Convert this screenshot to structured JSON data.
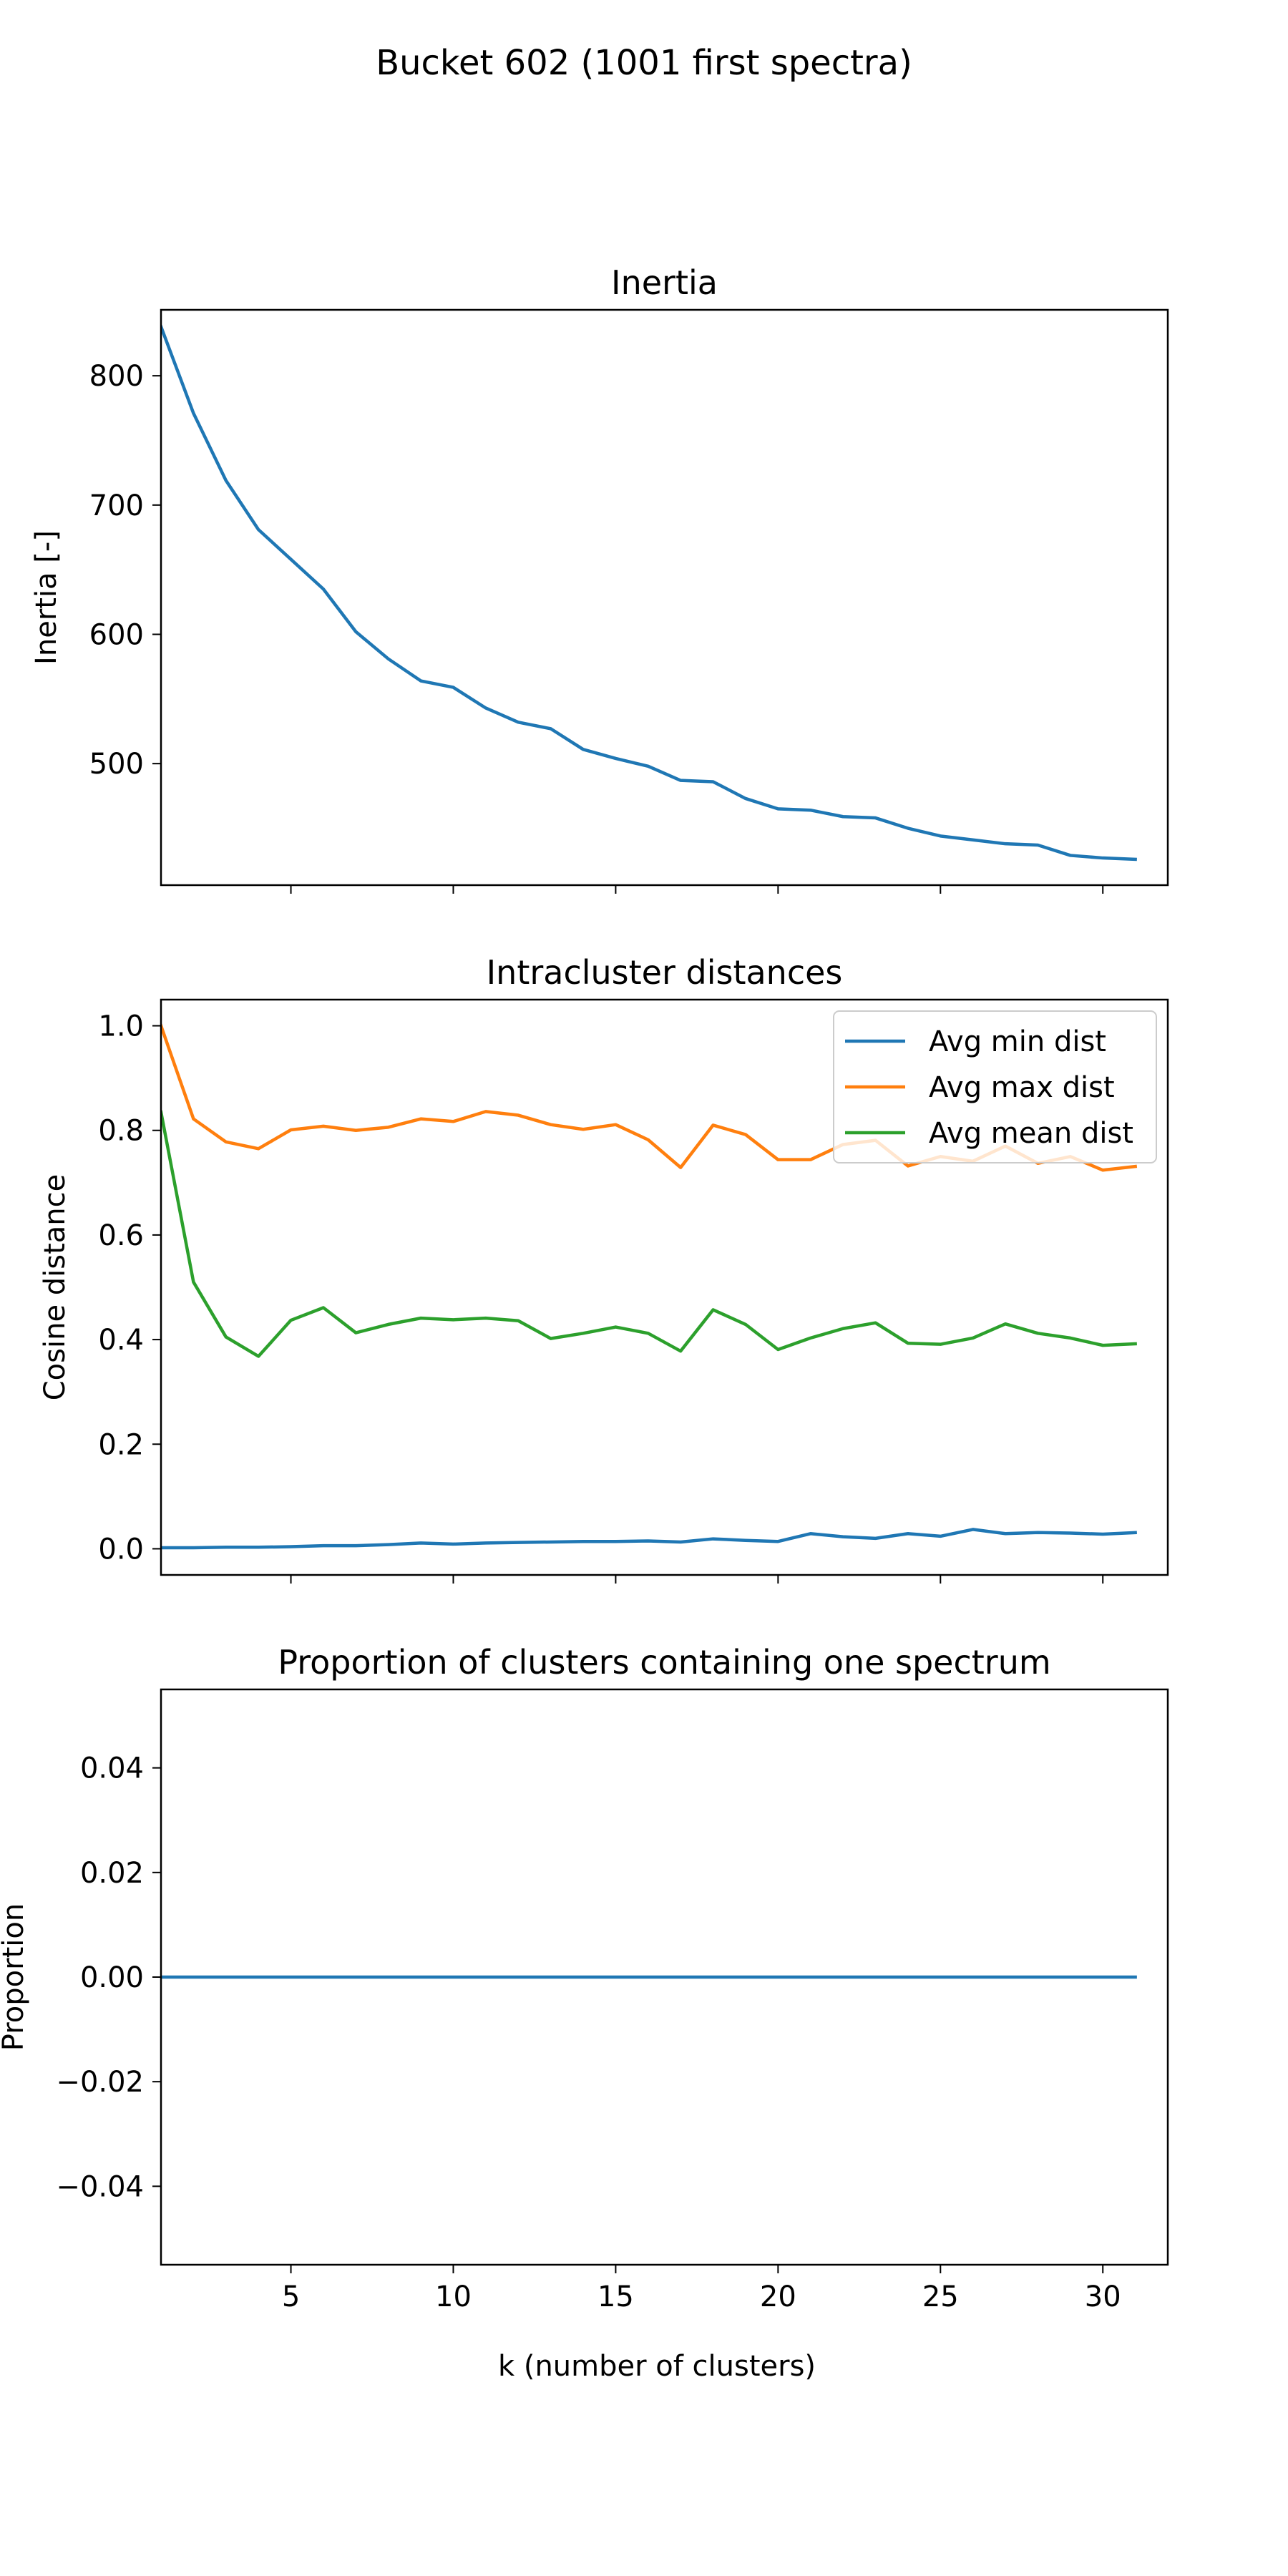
{
  "figure": {
    "title": "Bucket 602 (1001 first spectra)",
    "xlabel": "k (number of clusters)"
  },
  "chart_data": [
    {
      "type": "line",
      "title": "Inertia",
      "ylabel": "Inertia [-]",
      "xlim": [
        1,
        32
      ],
      "ylim": [
        406,
        851
      ],
      "xticks": [
        5,
        10,
        15,
        20,
        25,
        30
      ],
      "yticks": [
        500,
        600,
        700,
        800
      ],
      "show_xtick_labels": false,
      "legend": null,
      "grid": false,
      "series": [
        {
          "color": "#1f77b4",
          "x": [
            1,
            2,
            3,
            4,
            5,
            6,
            7,
            8,
            9,
            10,
            11,
            12,
            13,
            14,
            15,
            16,
            17,
            18,
            19,
            20,
            21,
            22,
            23,
            24,
            25,
            26,
            27,
            28,
            29,
            30,
            31
          ],
          "y": [
            838,
            771,
            719,
            681,
            658,
            635,
            602,
            581,
            564,
            559,
            543,
            532,
            527,
            511,
            504,
            498,
            487,
            486,
            473,
            465,
            464,
            459,
            458,
            450,
            444,
            441,
            438,
            437,
            429,
            427,
            426
          ]
        }
      ]
    },
    {
      "type": "line",
      "title": "Intracluster distances",
      "ylabel": "Cosine distance",
      "xlim": [
        1,
        32
      ],
      "ylim": [
        -0.05,
        1.05
      ],
      "xticks": [
        5,
        10,
        15,
        20,
        25,
        30
      ],
      "yticks": [
        0.0,
        0.2,
        0.4,
        0.6,
        0.8,
        1.0
      ],
      "ytick_labels": [
        "0.0",
        "0.2",
        "0.4",
        "0.6",
        "0.8",
        "1.0"
      ],
      "show_xtick_labels": false,
      "legend": "upper right",
      "grid": false,
      "series": [
        {
          "name": "Avg min dist",
          "color": "#1f77b4",
          "x": [
            1,
            2,
            3,
            4,
            5,
            6,
            7,
            8,
            9,
            10,
            11,
            12,
            13,
            14,
            15,
            16,
            17,
            18,
            19,
            20,
            21,
            22,
            23,
            24,
            25,
            26,
            27,
            28,
            29,
            30,
            31
          ],
          "y": [
            0.002,
            0.002,
            0.003,
            0.003,
            0.004,
            0.006,
            0.006,
            0.008,
            0.011,
            0.009,
            0.011,
            0.012,
            0.013,
            0.014,
            0.014,
            0.015,
            0.013,
            0.019,
            0.016,
            0.014,
            0.029,
            0.023,
            0.02,
            0.029,
            0.024,
            0.037,
            0.029,
            0.031,
            0.03,
            0.028,
            0.031
          ]
        },
        {
          "name": "Avg max dist",
          "color": "#ff7f0e",
          "x": [
            1,
            2,
            3,
            4,
            5,
            6,
            7,
            8,
            9,
            10,
            11,
            12,
            13,
            14,
            15,
            16,
            17,
            18,
            19,
            20,
            21,
            22,
            23,
            24,
            25,
            26,
            27,
            28,
            29,
            30,
            31
          ],
          "y": [
            1.0,
            0.822,
            0.778,
            0.765,
            0.801,
            0.808,
            0.8,
            0.806,
            0.822,
            0.817,
            0.836,
            0.829,
            0.811,
            0.802,
            0.811,
            0.782,
            0.729,
            0.81,
            0.792,
            0.744,
            0.744,
            0.773,
            0.781,
            0.732,
            0.75,
            0.741,
            0.77,
            0.737,
            0.75,
            0.724,
            0.731
          ]
        },
        {
          "name": "Avg mean dist",
          "color": "#2ca02c",
          "x": [
            1,
            2,
            3,
            4,
            5,
            6,
            7,
            8,
            9,
            10,
            11,
            12,
            13,
            14,
            15,
            16,
            17,
            18,
            19,
            20,
            21,
            22,
            23,
            24,
            25,
            26,
            27,
            28,
            29,
            30,
            31
          ],
          "y": [
            0.835,
            0.51,
            0.405,
            0.368,
            0.437,
            0.461,
            0.413,
            0.429,
            0.441,
            0.438,
            0.441,
            0.436,
            0.402,
            0.412,
            0.424,
            0.412,
            0.378,
            0.457,
            0.429,
            0.381,
            0.403,
            0.421,
            0.432,
            0.393,
            0.391,
            0.403,
            0.43,
            0.412,
            0.403,
            0.389,
            0.392
          ]
        }
      ]
    },
    {
      "type": "line",
      "title": "Proportion of clusters containing one spectrum",
      "ylabel": "Proportion",
      "xlim": [
        1,
        32
      ],
      "ylim": [
        -0.055,
        0.055
      ],
      "xticks": [
        5,
        10,
        15,
        20,
        25,
        30
      ],
      "yticks": [
        -0.04,
        -0.02,
        0.0,
        0.02,
        0.04
      ],
      "ytick_labels": [
        "−0.04",
        "−0.02",
        "0.00",
        "0.02",
        "0.04"
      ],
      "show_xtick_labels": true,
      "legend": null,
      "grid": false,
      "series": [
        {
          "color": "#1f77b4",
          "x": [
            1,
            2,
            3,
            4,
            5,
            6,
            7,
            8,
            9,
            10,
            11,
            12,
            13,
            14,
            15,
            16,
            17,
            18,
            19,
            20,
            21,
            22,
            23,
            24,
            25,
            26,
            27,
            28,
            29,
            30,
            31
          ],
          "y": [
            0,
            0,
            0,
            0,
            0,
            0,
            0,
            0,
            0,
            0,
            0,
            0,
            0,
            0,
            0,
            0,
            0,
            0,
            0,
            0,
            0,
            0,
            0,
            0,
            0,
            0,
            0,
            0,
            0,
            0,
            0
          ]
        }
      ]
    }
  ]
}
